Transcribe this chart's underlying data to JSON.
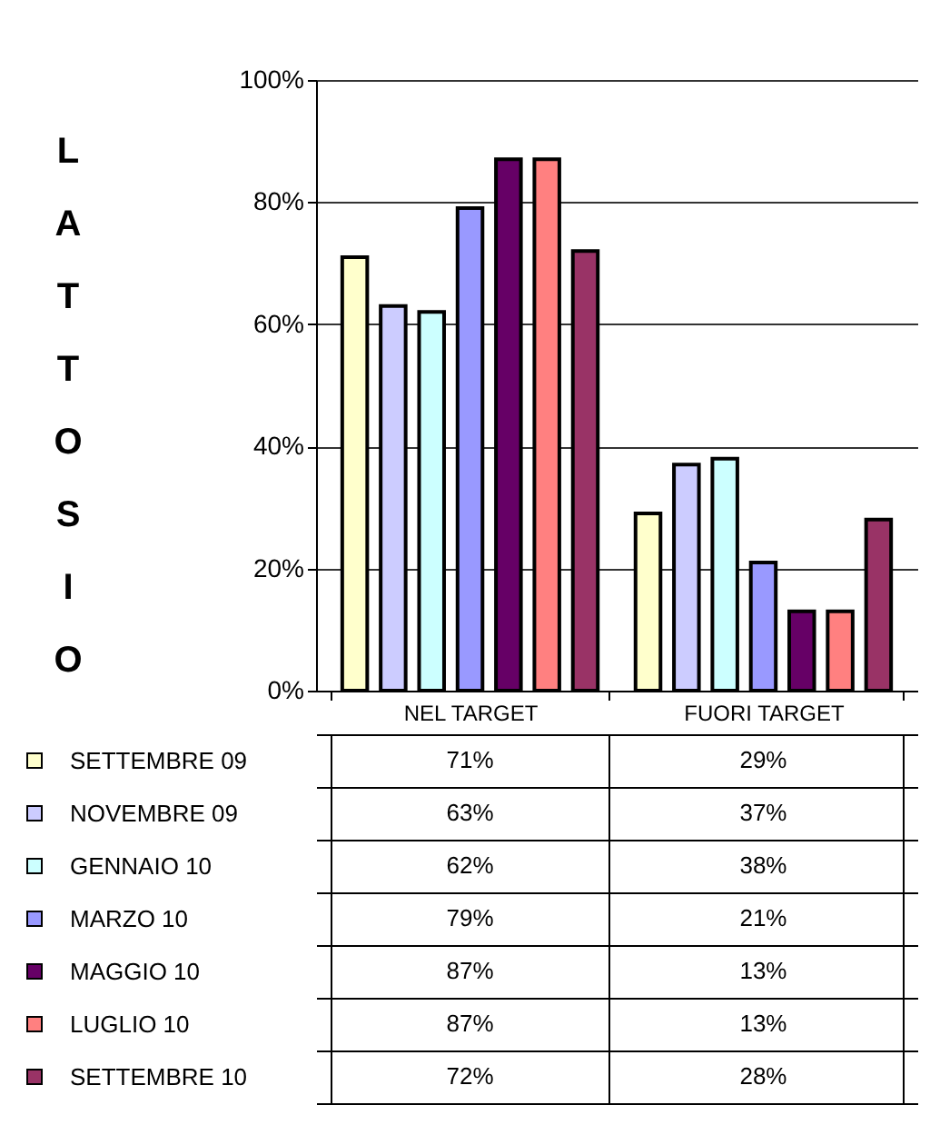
{
  "chart_data": {
    "type": "bar",
    "ylabel": "LATTOSIO",
    "categories": [
      "NEL TARGET",
      "FUORI TARGET"
    ],
    "ylim": [
      0,
      100
    ],
    "yticks": [
      {
        "value": 0,
        "label": "0%"
      },
      {
        "value": 20,
        "label": "20%"
      },
      {
        "value": 40,
        "label": "40%"
      },
      {
        "value": 60,
        "label": "60%"
      },
      {
        "value": 80,
        "label": "80%"
      },
      {
        "value": 100,
        "label": "100%"
      }
    ],
    "grid": "y",
    "legend": "bottom left",
    "series": [
      {
        "name": "SETTEMBRE 09",
        "color": "#ffffcc",
        "values": [
          71,
          29
        ],
        "value_labels": [
          "71%",
          "29%"
        ]
      },
      {
        "name": "NOVEMBRE 09",
        "color": "#ccccff",
        "values": [
          63,
          37
        ],
        "value_labels": [
          "63%",
          "37%"
        ]
      },
      {
        "name": "GENNAIO 10",
        "color": "#ccffff",
        "values": [
          62,
          38
        ],
        "value_labels": [
          "62%",
          "38%"
        ]
      },
      {
        "name": "MARZO 10",
        "color": "#9999ff",
        "values": [
          79,
          21
        ],
        "value_labels": [
          "79%",
          "21%"
        ]
      },
      {
        "name": "MAGGIO 10",
        "color": "#660066",
        "values": [
          87,
          13
        ],
        "value_labels": [
          "87%",
          "13%"
        ]
      },
      {
        "name": "LUGLIO 10",
        "color": "#ff8080",
        "values": [
          87,
          13
        ],
        "value_labels": [
          "87%",
          "13%"
        ]
      },
      {
        "name": "SETTEMBRE 10",
        "color": "#993366",
        "values": [
          72,
          28
        ],
        "value_labels": [
          "72%",
          "28%"
        ]
      }
    ]
  }
}
